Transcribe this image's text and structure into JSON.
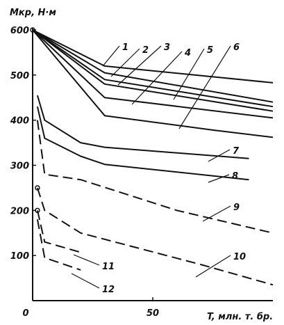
{
  "chart_data": {
    "type": "line",
    "ylabel": "Mкр, Н·м",
    "xlabel": "T, млн. т. бр.",
    "xlim": [
      0,
      100
    ],
    "ylim": [
      0,
      600
    ],
    "x_ticks": [
      0,
      50
    ],
    "y_ticks": [
      100,
      200,
      300,
      400,
      500,
      600
    ],
    "grid": false,
    "series": [
      {
        "name": "1",
        "style": "solid",
        "x": [
          0,
          30,
          100
        ],
        "y": [
          600,
          520,
          483
        ]
      },
      {
        "name": "2",
        "style": "solid",
        "x": [
          0,
          30,
          100
        ],
        "y": [
          600,
          505,
          440
        ]
      },
      {
        "name": "3",
        "style": "solid",
        "x": [
          0,
          30,
          100
        ],
        "y": [
          600,
          490,
          430
        ]
      },
      {
        "name": "4",
        "style": "solid",
        "x": [
          0,
          30,
          100
        ],
        "y": [
          600,
          480,
          420
        ]
      },
      {
        "name": "5",
        "style": "solid",
        "x": [
          0,
          30,
          100
        ],
        "y": [
          600,
          450,
          405
        ]
      },
      {
        "name": "6",
        "style": "solid",
        "x": [
          0,
          30,
          75,
          100
        ],
        "y": [
          600,
          410,
          378,
          362
        ]
      },
      {
        "name": "7",
        "style": "solid",
        "x": [
          2,
          5,
          20,
          30,
          90
        ],
        "y": [
          455,
          400,
          350,
          340,
          315
        ]
      },
      {
        "name": "8",
        "style": "solid",
        "x": [
          2,
          5,
          20,
          30,
          90
        ],
        "y": [
          430,
          360,
          320,
          302,
          268
        ]
      },
      {
        "name": "9",
        "style": "dashed",
        "x": [
          2,
          5,
          20,
          60,
          100
        ],
        "y": [
          400,
          280,
          268,
          200,
          150
        ]
      },
      {
        "name": "10",
        "style": "dashed",
        "x": [
          2,
          5,
          20,
          70,
          100
        ],
        "y": [
          250,
          200,
          150,
          80,
          35
        ]
      },
      {
        "name": "11",
        "style": "dashed",
        "x": [
          2,
          5,
          20
        ],
        "y": [
          200,
          130,
          107
        ]
      },
      {
        "name": "12",
        "style": "dashed",
        "x": [
          2,
          5,
          20
        ],
        "y": [
          180,
          95,
          68
        ]
      }
    ]
  }
}
